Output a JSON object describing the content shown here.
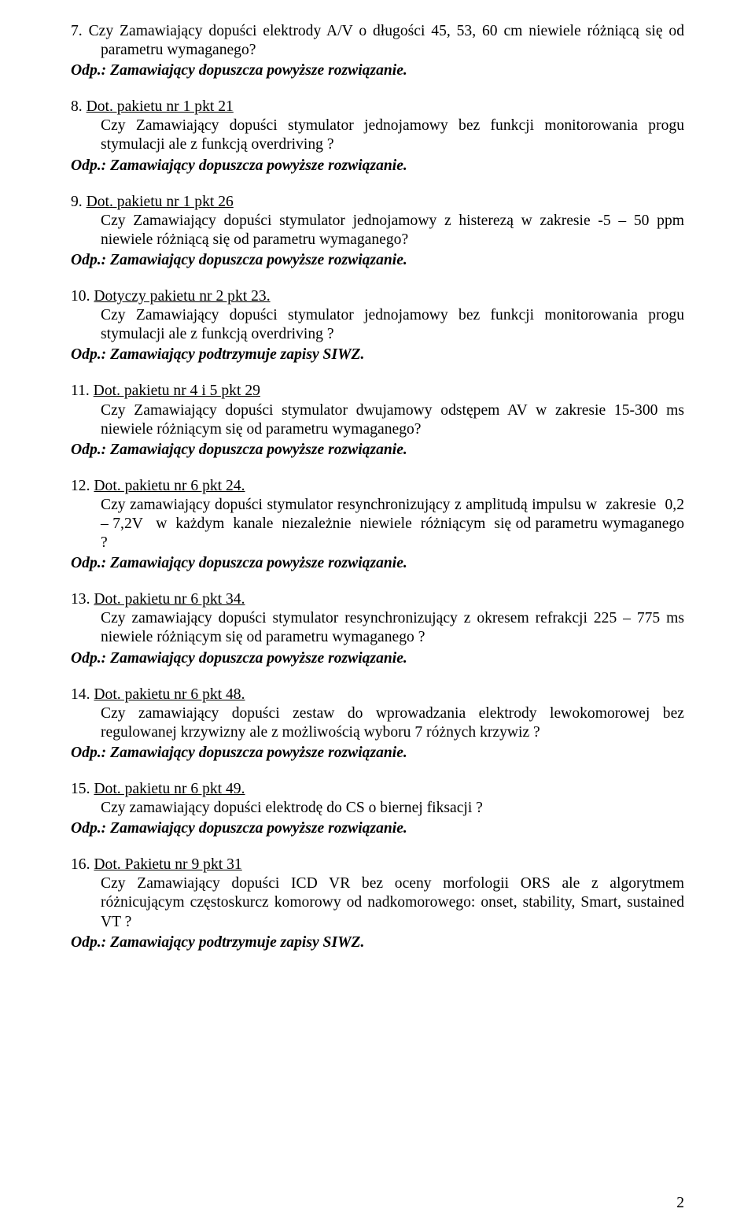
{
  "items": [
    {
      "num": "7.",
      "title": "",
      "question": "Czy Zamawiający dopuści elektrody A/V o długości 45, 53, 60 cm niewiele różniącą się od parametru wymaganego?",
      "answer": "Odp.: Zamawiający dopuszcza powyższe rozwiązanie."
    },
    {
      "num": "8.",
      "title": "Dot. pakietu nr 1 pkt 21",
      "question": "Czy Zamawiający dopuści stymulator jednojamowy bez funkcji monitorowania progu stymulacji ale z funkcją overdriving ?",
      "answer": "Odp.: Zamawiający dopuszcza powyższe rozwiązanie."
    },
    {
      "num": "9.",
      "title": "Dot. pakietu nr 1 pkt 26",
      "question": "Czy Zamawiający dopuści stymulator jednojamowy z histerezą w zakresie -5 – 50 ppm niewiele różniącą się od parametru wymaganego?",
      "answer": "Odp.: Zamawiający dopuszcza powyższe rozwiązanie."
    },
    {
      "num": "10.",
      "title": "Dotyczy pakietu nr 2 pkt 23.",
      "question": "Czy Zamawiający dopuści stymulator jednojamowy bez funkcji monitorowania progu stymulacji ale z funkcją overdriving ?",
      "answer": "Odp.: Zamawiający podtrzymuje zapisy SIWZ."
    },
    {
      "num": "11.",
      "title": "Dot. pakietu nr 4 i 5 pkt 29",
      "question": "Czy Zamawiający dopuści stymulator dwujamowy odstępem AV w zakresie 15-300 ms niewiele różniącym się od parametru wymaganego?",
      "answer": "Odp.: Zamawiający dopuszcza powyższe rozwiązanie."
    },
    {
      "num": "12.",
      "title": "Dot. pakietu nr 6 pkt 24.",
      "question": "Czy zamawiający dopuści stymulator resynchronizujący z amplitudą impulsu w  zakresie  0,2 – 7,2V   w  każdym  kanale  niezależnie  niewiele  różniącym  się od parametru wymaganego ?",
      "answer": "Odp.:  Zamawiający dopuszcza powyższe rozwiązanie."
    },
    {
      "num": "13.",
      "title": "Dot. pakietu nr 6 pkt 34.",
      "question": "Czy zamawiający dopuści stymulator resynchronizujący z okresem refrakcji 225 – 775 ms niewiele różniącym się od parametru wymaganego ?",
      "answer": "Odp.: Zamawiający dopuszcza powyższe rozwiązanie."
    },
    {
      "num": "14.",
      "title": "Dot. pakietu nr 6 pkt 48.",
      "question": "Czy zamawiający dopuści zestaw do wprowadzania elektrody lewokomorowej bez regulowanej krzywizny ale z możliwością wyboru 7 różnych krzywiz ?",
      "answer": "Odp.: Zamawiający dopuszcza powyższe rozwiązanie."
    },
    {
      "num": "15.",
      "title": "Dot. pakietu nr 6 pkt 49.",
      "question": "Czy zamawiający dopuści elektrodę do CS o biernej fiksacji ?",
      "answer": "Odp.: Zamawiający dopuszcza powyższe rozwiązanie."
    },
    {
      "num": "16.",
      "title": "Dot. Pakietu nr 9 pkt 31",
      "question": "Czy Zamawiający dopuści ICD VR bez oceny morfologii ORS ale z algorytmem różnicującym częstoskurcz komorowy od nadkomorowego: onset, stability, Smart, sustained VT ?",
      "answer": "Odp.: Zamawiający podtrzymuje zapisy SIWZ."
    }
  ],
  "pagenum": "2"
}
